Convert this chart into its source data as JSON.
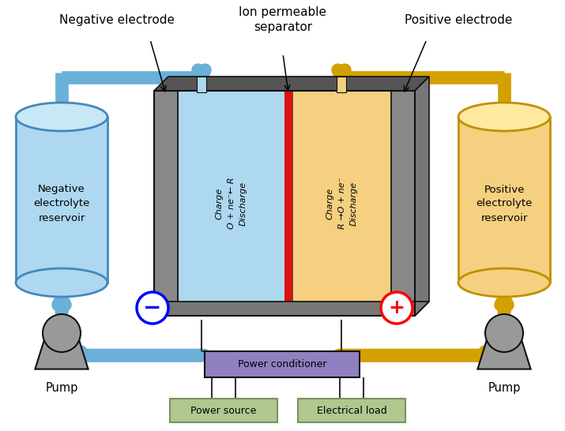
{
  "bg_color": "#ffffff",
  "blue_light": "#add8f0",
  "blue_pipe": "#6ab0d8",
  "blue_ec": "#4488bb",
  "yellow_light": "#f5d080",
  "yellow_pipe": "#d4a000",
  "yellow_ec": "#c09000",
  "gray_elec": "#888888",
  "gray_dark": "#555555",
  "red_membrane": "#dd1111",
  "gray_pump": "#999999",
  "purple_cond": "#9080c0",
  "green_box": "#b0c890",
  "green_ec": "#789060",
  "black": "#111111",
  "neg_reservoir_label": "Negative\nelectrolyte\nreservoir",
  "pos_reservoir_label": "Positive\nelectrolyte\nreservoir",
  "neg_electrode_label": "Negative electrode",
  "pos_electrode_label": "Positive electrode",
  "ion_separator_label": "Ion permeable\nseparator",
  "pump_label": "Pump",
  "power_conditioner_label": "Power conditioner",
  "power_source_label": "Power source",
  "electrical_load_label": "Electrical load",
  "left_cell_line1": "Charge",
  "left_cell_line2": "O + ne⁻← R",
  "left_cell_line3": "Discharge",
  "right_cell_line1": "Charge",
  "right_cell_line2": "R →O + ne⁻",
  "right_cell_line3": "Discharge",
  "figsize": [
    7.15,
    5.46
  ],
  "dpi": 100
}
